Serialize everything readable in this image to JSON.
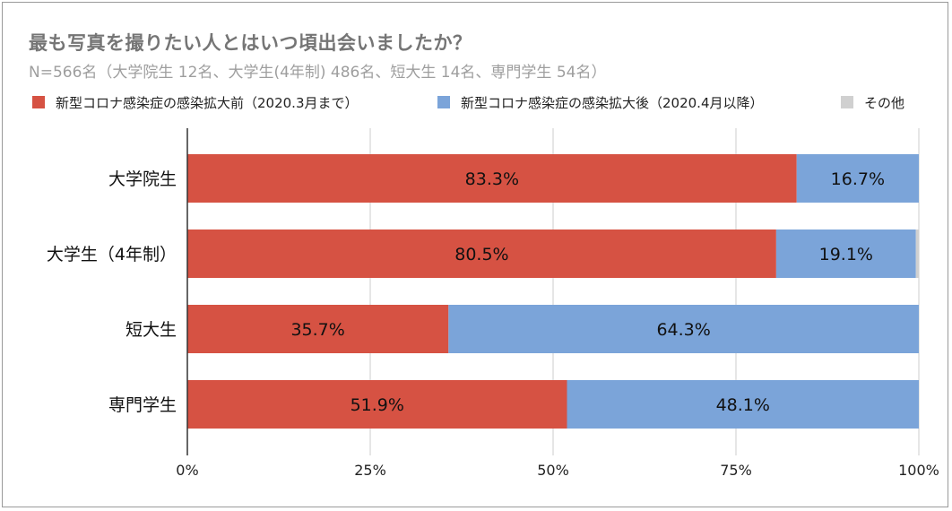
{
  "title": "最も写真を撮りたい人とはいつ頃出会いましたか？",
  "subtitle": "N=566名（大学院生 12名、大学生(4年制) 486名、短大生 14名、専門学生 54名）",
  "legend": [
    {
      "label": "新型コロナ感染症の感染拡大前（2020.3月まで）",
      "color": "#d65243"
    },
    {
      "label": "新型コロナ感染症の感染拡大後（2020.4月以降）",
      "color": "#7ba4d9"
    },
    {
      "label": "その他",
      "color": "#d0d0d0"
    }
  ],
  "chart_data": {
    "type": "bar",
    "orientation": "horizontal",
    "stacked": true,
    "title": "最も写真を撮りたい人とはいつ頃出会いましたか？",
    "subtitle": "N=566名（大学院生 12名、大学生(4年制) 486名、短大生 14名、専門学生 54名）",
    "categories": [
      "大学院生",
      "大学生（4年制）",
      "短大生",
      "専門学生"
    ],
    "series": [
      {
        "name": "新型コロナ感染症の感染拡大前（2020.3月まで）",
        "color": "#d65243",
        "values": [
          83.3,
          80.5,
          35.7,
          51.9
        ],
        "labels": [
          "83.3%",
          "80.5%",
          "35.7%",
          "51.9%"
        ]
      },
      {
        "name": "新型コロナ感染症の感染拡大後（2020.4月以降）",
        "color": "#7ba4d9",
        "values": [
          16.7,
          19.1,
          64.3,
          48.1
        ],
        "labels": [
          "16.7%",
          "19.1%",
          "64.3%",
          "48.1%"
        ]
      },
      {
        "name": "その他",
        "color": "#d0d0d0",
        "values": [
          0,
          0.4,
          0,
          0
        ],
        "labels": [
          "",
          "",
          "",
          ""
        ]
      }
    ],
    "xlim": [
      0,
      100
    ],
    "xticks": [
      0,
      25,
      50,
      75,
      100
    ],
    "xtick_labels": [
      "0%",
      "25%",
      "50%",
      "75%",
      "100%"
    ],
    "grid": true,
    "legend_position": "top"
  }
}
